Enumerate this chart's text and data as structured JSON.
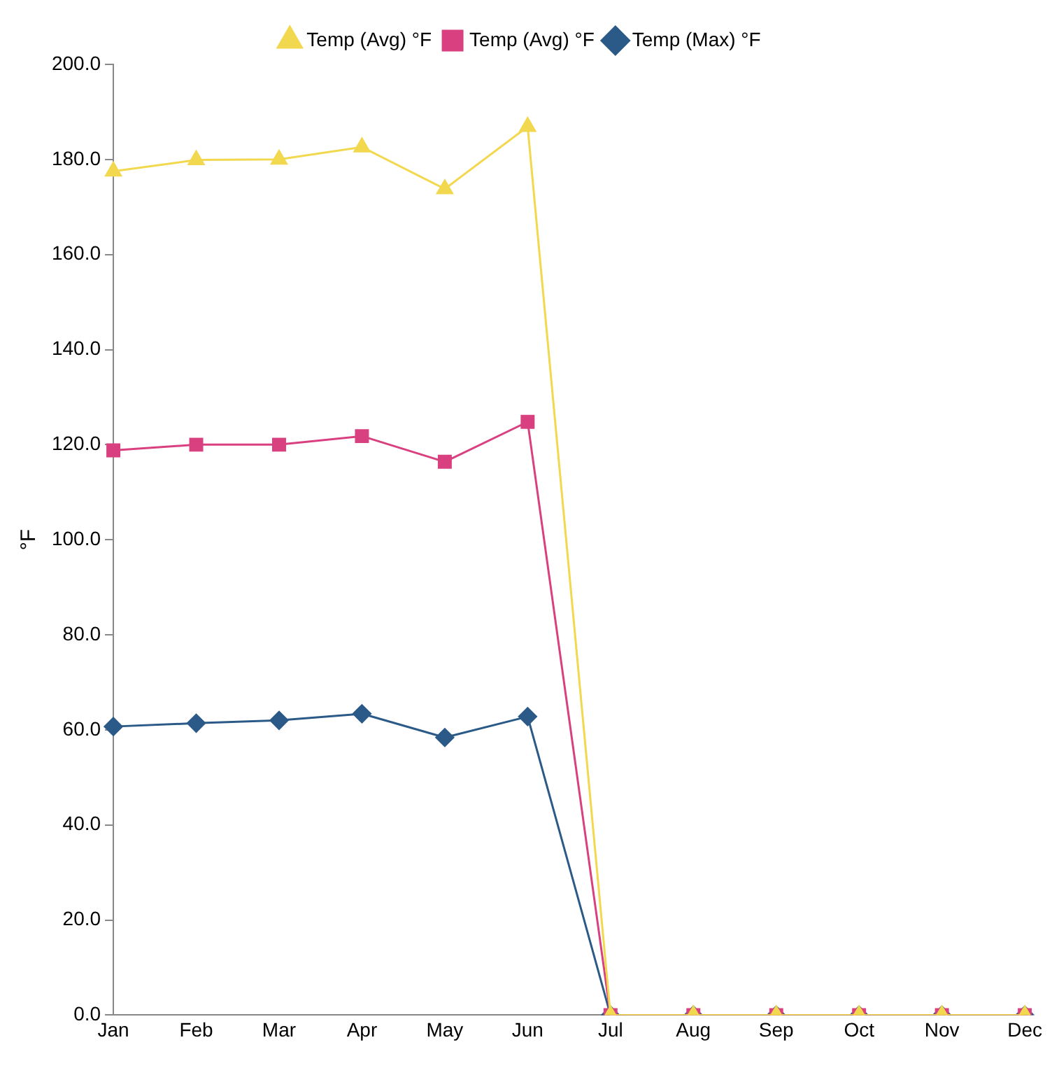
{
  "chart_data": {
    "type": "line",
    "ylabel": "°F",
    "categories": [
      "Jan",
      "Feb",
      "Mar",
      "Apr",
      "May",
      "Jun",
      "Jul",
      "Aug",
      "Sep",
      "Oct",
      "Nov",
      "Dec"
    ],
    "series": [
      {
        "name": "Temp (Max) °F",
        "color": "#2b5a88",
        "marker": "diamond",
        "values": [
          60.7,
          61.4,
          62,
          63.4,
          58.4,
          62.8,
          0,
          0,
          0,
          0,
          0,
          0
        ]
      },
      {
        "name": "Temp (Avg) °F",
        "color": "#d9407f",
        "marker": "square",
        "values": [
          118.8,
          120,
          120,
          121.8,
          116.4,
          124.8,
          0,
          0,
          0,
          0,
          0,
          0
        ]
      },
      {
        "name": "Temp (Avg) °F",
        "color": "#f2d84e",
        "marker": "triangle",
        "values": [
          177.5,
          179.9,
          180,
          182.6,
          173.8,
          186.9,
          0,
          0,
          0,
          0,
          0,
          0
        ]
      }
    ],
    "ylim": [
      0,
      200
    ],
    "yticks": [
      {
        "value": 0,
        "label": "0.0"
      },
      {
        "value": 20,
        "label": "20.0"
      },
      {
        "value": 40,
        "label": "40.0"
      },
      {
        "value": 60,
        "label": "60.0"
      },
      {
        "value": 80,
        "label": "80.0"
      },
      {
        "value": 100,
        "label": "100.0"
      },
      {
        "value": 120,
        "label": "120.0"
      },
      {
        "value": 140,
        "label": "140.0"
      },
      {
        "value": 160,
        "label": "160.0"
      },
      {
        "value": 180,
        "label": "180.0"
      },
      {
        "value": 200,
        "label": "200.0"
      }
    ],
    "grid": false,
    "legend": "top",
    "line_style": "solid"
  }
}
